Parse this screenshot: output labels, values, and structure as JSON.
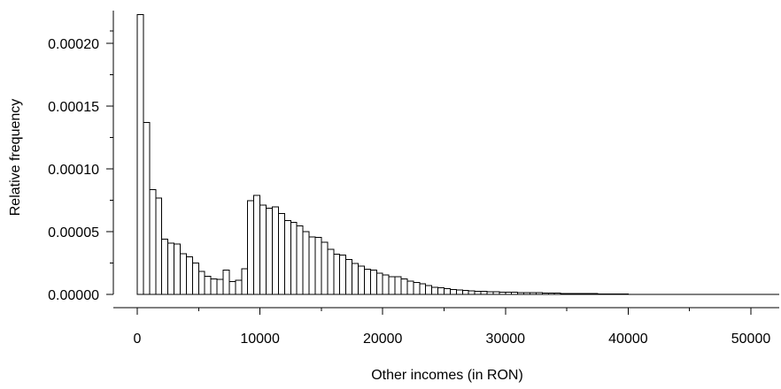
{
  "chart_data": {
    "type": "bar",
    "xlabel": "Other incomes (in RON)",
    "ylabel": "Relative frequency",
    "xlim": [
      0,
      52000
    ],
    "ylim": [
      0,
      0.00022
    ],
    "x_ticks": [
      0,
      10000,
      20000,
      30000,
      40000,
      50000
    ],
    "y_ticks": [
      0.0,
      5e-05,
      0.0001,
      0.00015,
      0.0002
    ],
    "x_tick_labels": [
      "0",
      "10000",
      "20000",
      "30000",
      "40000",
      "50000"
    ],
    "y_tick_labels": [
      "0.00000",
      "0.00005",
      "0.00010",
      "0.00015",
      "0.00020"
    ],
    "bin_width": 500,
    "bins_start": 0,
    "values": [
      0.000223,
      0.000137,
      8.35e-05,
      7.68e-05,
      4.4e-05,
      4.1e-05,
      4.03e-05,
      3.25e-05,
      2.98e-05,
      2.5e-05,
      1.82e-05,
      1.45e-05,
      1.25e-05,
      1.18e-05,
      1.95e-05,
      1.02e-05,
      1.12e-05,
      2.05e-05,
      7.48e-05,
      7.9e-05,
      7.12e-05,
      6.85e-05,
      6.98e-05,
      6.45e-05,
      5.88e-05,
      5.75e-05,
      5.45e-05,
      5e-05,
      4.58e-05,
      4.55e-05,
      4.15e-05,
      3.58e-05,
      3.22e-05,
      3.12e-05,
      2.78e-05,
      2.48e-05,
      2.25e-05,
      2.02e-05,
      1.92e-05,
      1.68e-05,
      1.55e-05,
      1.42e-05,
      1.41e-05,
      1.22e-05,
      1.06e-05,
      9.6e-06,
      8.6e-06,
      6.9e-06,
      5.8e-06,
      5.2e-06,
      4.6e-06,
      3.9e-06,
      3.4e-06,
      3e-06,
      2.8e-06,
      2.6e-06,
      2.4e-06,
      2.2e-06,
      2e-06,
      1.8e-06,
      1.6e-06,
      1.6e-06,
      1.5e-06,
      1.5e-06,
      1.4e-06,
      1.4e-06,
      1.2e-06,
      1e-06,
      9e-07,
      8e-07,
      7e-07,
      7e-07,
      6e-07,
      6e-07,
      6e-07,
      5e-07,
      5e-07,
      5e-07,
      4e-07,
      3e-07
    ],
    "tail_end": 52000
  }
}
